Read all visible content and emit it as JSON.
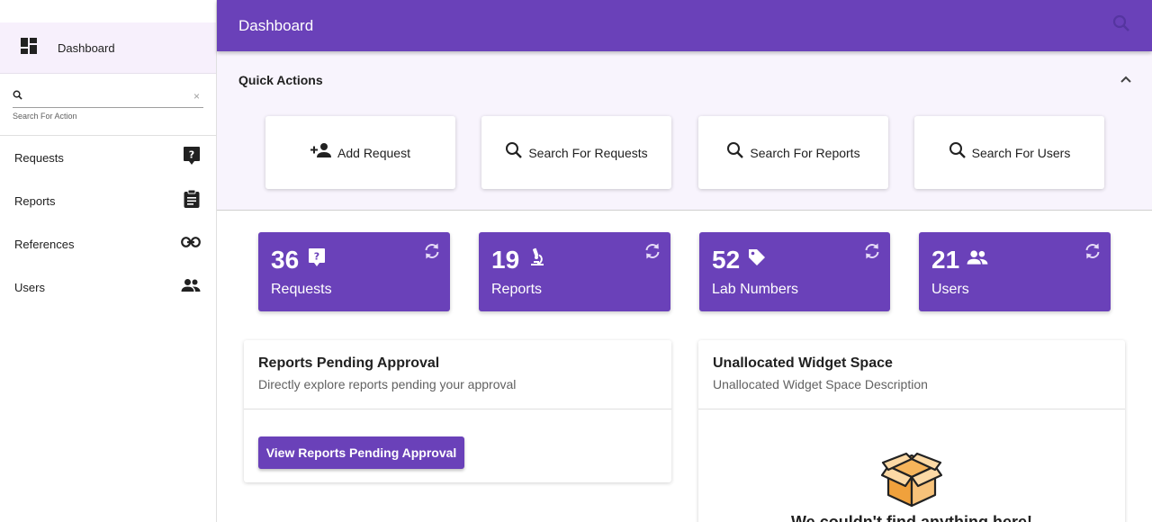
{
  "sidebar": {
    "dashboard_label": "Dashboard",
    "search": {
      "value": "",
      "hint": "Search For Action",
      "clear_glyph": "×"
    },
    "items": [
      {
        "label": "Requests",
        "icon": "help-box-icon"
      },
      {
        "label": "Reports",
        "icon": "clipboard-icon"
      },
      {
        "label": "References",
        "icon": "link-icon"
      },
      {
        "label": "Users",
        "icon": "users-icon"
      }
    ]
  },
  "header": {
    "title": "Dashboard",
    "icon": "search-icon"
  },
  "quick_actions": {
    "title": "Quick Actions",
    "buttons": [
      {
        "label": "Add Request",
        "icon": "person-add-icon"
      },
      {
        "label": "Search For Requests",
        "icon": "search-icon"
      },
      {
        "label": "Search For Reports",
        "icon": "search-icon"
      },
      {
        "label": "Search For Users",
        "icon": "search-icon"
      }
    ]
  },
  "stats": [
    {
      "value": "36",
      "label": "Requests",
      "icon": "help-box-icon"
    },
    {
      "value": "19",
      "label": "Reports",
      "icon": "microscope-icon"
    },
    {
      "value": "52",
      "label": "Lab Numbers",
      "icon": "tag-icon"
    },
    {
      "value": "21",
      "label": "Users",
      "icon": "users-icon"
    }
  ],
  "widgets": {
    "pending": {
      "title": "Reports Pending Approval",
      "description": "Directly explore reports pending your approval",
      "button": "View Reports Pending Approval"
    },
    "unallocated": {
      "title": "Unallocated Widget Space",
      "description": "Unallocated Widget Space Description",
      "empty_text": "We couldn't find anything here!"
    }
  },
  "colors": {
    "primary": "#6a41b9",
    "quick_actions_bg": "#f8f4fd",
    "sidebar_active_bg": "#f7f0fc"
  }
}
